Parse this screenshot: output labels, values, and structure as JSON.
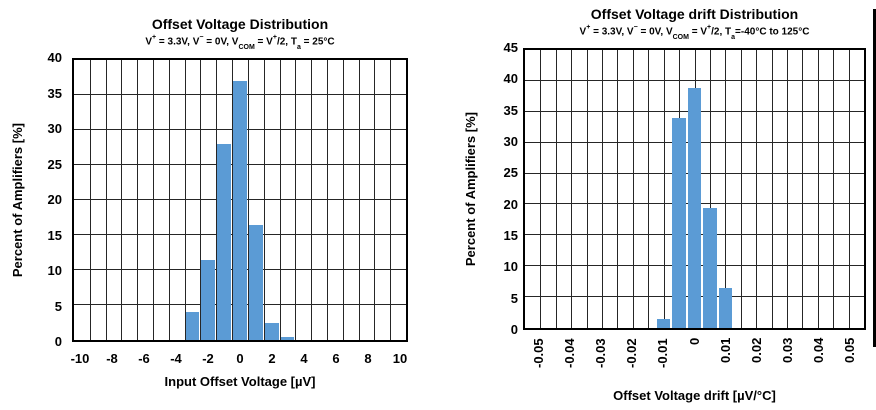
{
  "colors": {
    "bar": "#5b9bd5",
    "grid": "#262626",
    "axis": "#000000"
  },
  "chart_data": [
    {
      "type": "bar",
      "title": "Offset Voltage Distribution",
      "subtitle": "V^+^ = 3.3V, V^−^ = 0V, V~COM~ = V^+^/2, T~a~ = 25°C",
      "xlabel": "Input Offset Voltage [µV]",
      "ylabel": "Percent of Amplifiers [%]",
      "bin_centers": [
        -3,
        -2,
        -1,
        0,
        1,
        2,
        3
      ],
      "values": [
        4,
        11.5,
        28,
        37,
        16.5,
        2.5,
        0.5
      ],
      "bin_width": 1,
      "xlim": [
        -10.5,
        10.5
      ],
      "ylim": [
        0,
        40
      ],
      "x_grid_step": 1,
      "y_grid_step": 5,
      "x_ticks": [
        -10,
        -8,
        -6,
        -4,
        -2,
        0,
        2,
        4,
        6,
        8,
        10
      ],
      "x_tick_labels": [
        "-10",
        "-8",
        "-6",
        "-4",
        "-2",
        "0",
        "2",
        "4",
        "6",
        "8",
        "10"
      ],
      "y_ticks": [
        0,
        5,
        10,
        15,
        20,
        25,
        30,
        35,
        40
      ],
      "x_tick_rotation": 0,
      "grid": true,
      "legend": "none",
      "bar_color": "#5b9bd5"
    },
    {
      "type": "bar",
      "title": "Offset Voltage drift Distribution",
      "subtitle": "V^+^ = 3.3V, V^−^ = 0V, V~COM~ = V^+^/2, T~a~=-40°C to 125°C",
      "xlabel": "Offset Voltage drift [µV/°C]",
      "ylabel": "Percent of Amplifiers [%]",
      "bin_centers": [
        -0.01,
        -0.005,
        0,
        0.005,
        0.01
      ],
      "values": [
        1.5,
        34,
        38.8,
        19.5,
        6.5
      ],
      "bin_width": 0.005,
      "xlim": [
        -0.055,
        0.055
      ],
      "ylim": [
        0,
        45
      ],
      "x_grid_step": 0.005,
      "y_grid_step": 5,
      "x_ticks": [
        -0.05,
        -0.04,
        -0.03,
        -0.02,
        -0.01,
        0,
        0.01,
        0.02,
        0.03,
        0.04,
        0.05
      ],
      "x_tick_labels": [
        "-0.05",
        "-0.04",
        "-0.03",
        "-0.02",
        "-0.01",
        "0",
        "0.01",
        "0.02",
        "0.03",
        "0.04",
        "0.05"
      ],
      "y_ticks": [
        0,
        5,
        10,
        15,
        20,
        25,
        30,
        35,
        40,
        45
      ],
      "x_tick_rotation": -90,
      "grid": true,
      "legend": "none",
      "bar_color": "#5b9bd5"
    }
  ]
}
